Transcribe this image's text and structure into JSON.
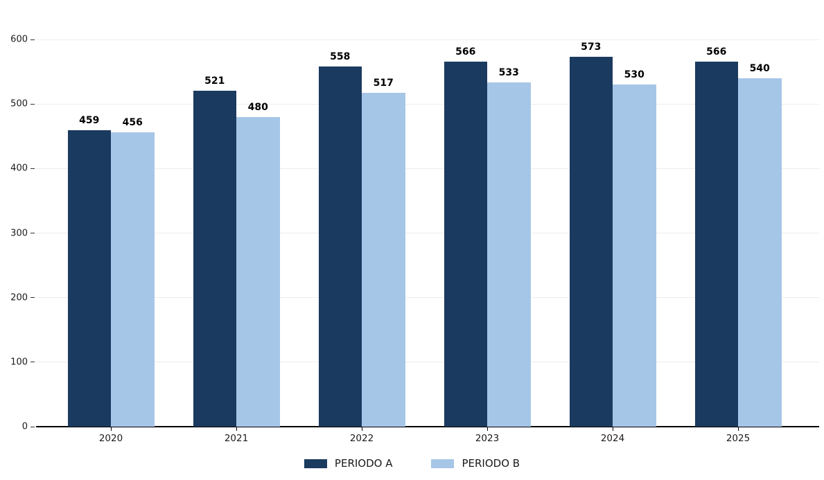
{
  "chart_data": {
    "type": "bar",
    "title": "",
    "xlabel": "",
    "ylabel": "",
    "categories": [
      "2020",
      "2021",
      "2022",
      "2023",
      "2024",
      "2025"
    ],
    "series": [
      {
        "name": "PERIODO A",
        "color": "#1b3a5f",
        "values": [
          459,
          521,
          558,
          566,
          573,
          566
        ]
      },
      {
        "name": "PERIODO B",
        "color": "#a6c6e8",
        "values": [
          456,
          480,
          517,
          533,
          530,
          540
        ]
      }
    ],
    "ylim": [
      0,
      600
    ],
    "yticks": [
      0,
      100,
      200,
      300,
      400,
      500,
      600
    ],
    "grid": "horizontal",
    "value_labels": true,
    "legend_position": "bottom-center",
    "colors": {
      "gridline": "#ececec",
      "axis_line": "#000000",
      "tick_text": "#1a1a1a",
      "value_label_text": "#000000",
      "background": "#ffffff"
    }
  }
}
